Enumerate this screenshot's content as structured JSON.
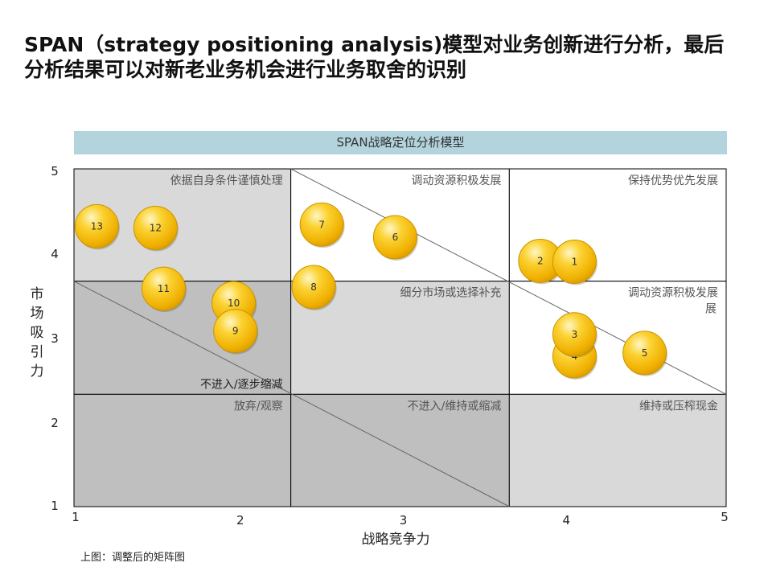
{
  "title": {
    "line1": "SPAN（strategy positioning analysis)模型对业务创新进行分析，最后",
    "line2": "分析结果可以对新老业务机会进行业务取舍的识别"
  },
  "banner": "SPAN战略定位分析模型",
  "caption": "上图：调整后的矩阵图",
  "colors": {
    "cell_light": "#d9d9d9",
    "cell_dark": "#bfbfbf",
    "cell_white": "#ffffff",
    "bubble": "#f7c10e",
    "bubble_highlight": "#fff3b0",
    "bubble_edge": "#c99400",
    "banner": "#b3d4dd"
  },
  "chart_data": {
    "type": "scatter",
    "xlabel": "战略竞争力",
    "ylabel": "市场吸引力",
    "xlim": [
      1,
      5
    ],
    "ylim": [
      1,
      5
    ],
    "x_ticks": [
      "1",
      "2",
      "3",
      "4",
      "5"
    ],
    "y_ticks": [
      "1",
      "2",
      "3",
      "4",
      "5"
    ],
    "x_dividers": [
      2.33,
      3.67
    ],
    "y_dividers": [
      2.33,
      3.67
    ],
    "cells": [
      {
        "col": 0,
        "row": 2,
        "label": "依据自身条件谨慎处理",
        "shade": "light",
        "align": "right"
      },
      {
        "col": 1,
        "row": 2,
        "label": "调动资源积极发展",
        "shade": "white",
        "align": "right"
      },
      {
        "col": 2,
        "row": 2,
        "label": "保持优势优先发展",
        "shade": "white",
        "align": "right"
      },
      {
        "col": 0,
        "row": 1,
        "label": "不进入/逐步缩减",
        "shade": "dark",
        "align": "right-bottom"
      },
      {
        "col": 1,
        "row": 1,
        "label": "细分市场或选择补充",
        "shade": "light",
        "align": "right"
      },
      {
        "col": 2,
        "row": 1,
        "label": "调动资源积极发展",
        "shade": "white",
        "align": "right"
      },
      {
        "col": 0,
        "row": 0,
        "label": "放弃/观察",
        "shade": "dark",
        "align": "right"
      },
      {
        "col": 1,
        "row": 0,
        "label": "不进入/维持或缩减",
        "shade": "dark",
        "align": "right"
      },
      {
        "col": 2,
        "row": 0,
        "label": "维持或压榨现金",
        "shade": "light",
        "align": "right"
      }
    ],
    "cell_label_extra": "展",
    "diagonals": [
      {
        "from": [
          2.33,
          5.0
        ],
        "to": [
          5.0,
          2.33
        ]
      },
      {
        "from": [
          1.0,
          3.67
        ],
        "to": [
          3.67,
          1.0
        ]
      }
    ],
    "points": [
      {
        "label": "13",
        "x": 1.14,
        "y": 4.32
      },
      {
        "label": "12",
        "x": 1.5,
        "y": 4.3
      },
      {
        "label": "11",
        "x": 1.55,
        "y": 3.58
      },
      {
        "label": "10",
        "x": 1.98,
        "y": 3.41
      },
      {
        "label": "9",
        "x": 1.99,
        "y": 3.08
      },
      {
        "label": "8",
        "x": 2.47,
        "y": 3.6
      },
      {
        "label": "7",
        "x": 2.52,
        "y": 4.34
      },
      {
        "label": "6",
        "x": 2.97,
        "y": 4.19
      },
      {
        "label": "2",
        "x": 3.86,
        "y": 3.91
      },
      {
        "label": "1",
        "x": 4.07,
        "y": 3.9
      },
      {
        "label": "4",
        "x": 4.07,
        "y": 2.78
      },
      {
        "label": "3",
        "x": 4.07,
        "y": 3.04
      },
      {
        "label": "5",
        "x": 4.5,
        "y": 2.82
      }
    ]
  }
}
